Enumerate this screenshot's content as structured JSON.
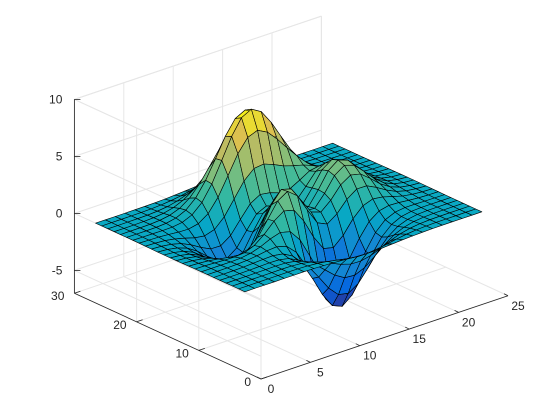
{
  "chart_data": {
    "type": "surface",
    "function": "peaks",
    "grid": true,
    "colormap": "parula",
    "edge_color": "#000000",
    "xlim": [
      0,
      25
    ],
    "ylim": [
      0,
      30
    ],
    "zlim": [
      -7,
      10
    ],
    "x_ticks": [
      0,
      5,
      10,
      15,
      20,
      25
    ],
    "y_ticks": [
      0,
      10,
      20,
      30
    ],
    "z_ticks": [
      -5,
      0,
      5,
      10
    ],
    "x_tick_labels": [
      "0",
      "5",
      "10",
      "15",
      "20",
      "25"
    ],
    "y_tick_labels": [
      "0",
      "10",
      "20",
      "30"
    ],
    "z_tick_labels": [
      "-5",
      "0",
      "5",
      "10"
    ],
    "grid_points": 25,
    "peaks": [
      {
        "x": 12.5,
        "y": 19.8,
        "z": 8.1
      },
      {
        "x": 17.5,
        "y": 11.8,
        "z": 3.8
      },
      {
        "x": 11.5,
        "y": 8.4,
        "z": -6.5
      }
    ],
    "title": "",
    "xlabel": "",
    "ylabel": "",
    "zlabel": ""
  }
}
